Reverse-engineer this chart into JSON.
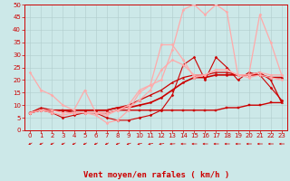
{
  "xlabel": "Vent moyen/en rafales ( km/h )",
  "bg_color": "#cce8e8",
  "grid_color": "#b0cccc",
  "xlim": [
    -0.5,
    23.5
  ],
  "ylim": [
    0,
    50
  ],
  "yticks": [
    0,
    5,
    10,
    15,
    20,
    25,
    30,
    35,
    40,
    45,
    50
  ],
  "xticks": [
    0,
    1,
    2,
    3,
    4,
    5,
    6,
    7,
    8,
    9,
    10,
    11,
    12,
    13,
    14,
    15,
    16,
    17,
    18,
    19,
    20,
    21,
    22,
    23
  ],
  "series": [
    {
      "x": [
        0,
        1,
        2,
        3,
        4,
        5,
        6,
        7,
        8,
        9,
        10,
        11,
        12,
        13,
        14,
        15,
        16,
        17,
        18,
        19,
        20,
        21,
        22,
        23
      ],
      "y": [
        7,
        8,
        8,
        8,
        7,
        7,
        7,
        7,
        8,
        8,
        8,
        8,
        8,
        8,
        8,
        8,
        8,
        8,
        9,
        9,
        10,
        10,
        11,
        11
      ],
      "color": "#cc0000",
      "lw": 1.0,
      "marker": "s",
      "ms": 1.5
    },
    {
      "x": [
        0,
        1,
        2,
        3,
        4,
        5,
        6,
        7,
        8,
        9,
        10,
        11,
        12,
        13,
        14,
        15,
        16,
        17,
        18,
        19,
        20,
        21,
        22,
        23
      ],
      "y": [
        7,
        8,
        7,
        5,
        6,
        7,
        7,
        5,
        4,
        4,
        5,
        6,
        8,
        14,
        26,
        29,
        20,
        29,
        25,
        20,
        23,
        22,
        17,
        12
      ],
      "color": "#cc0000",
      "lw": 0.8,
      "marker": "D",
      "ms": 1.5
    },
    {
      "x": [
        0,
        1,
        2,
        3,
        4,
        5,
        6,
        7,
        8,
        9,
        10,
        11,
        12,
        13,
        14,
        15,
        16,
        17,
        18,
        19,
        20,
        21,
        22,
        23
      ],
      "y": [
        7,
        8,
        8,
        8,
        8,
        8,
        8,
        8,
        9,
        9,
        10,
        11,
        13,
        16,
        19,
        21,
        21,
        22,
        22,
        22,
        22,
        22,
        21,
        21
      ],
      "color": "#cc0000",
      "lw": 1.2,
      "marker": "o",
      "ms": 1.5
    },
    {
      "x": [
        0,
        1,
        2,
        3,
        4,
        5,
        6,
        7,
        8,
        9,
        10,
        11,
        12,
        13,
        14,
        15,
        16,
        17,
        18,
        19,
        20,
        21,
        22,
        23
      ],
      "y": [
        7,
        9,
        8,
        8,
        8,
        8,
        8,
        8,
        9,
        10,
        12,
        14,
        16,
        19,
        21,
        22,
        22,
        23,
        23,
        22,
        22,
        23,
        20,
        11
      ],
      "color": "#cc0000",
      "lw": 0.9,
      "marker": "^",
      "ms": 1.5
    },
    {
      "x": [
        0,
        1,
        2,
        3,
        4,
        5,
        6,
        7,
        8,
        9,
        10,
        11,
        12,
        13,
        14,
        15,
        16,
        17,
        18,
        19,
        20,
        21,
        22,
        23
      ],
      "y": [
        23,
        16,
        14,
        10,
        8,
        16,
        7,
        7,
        8,
        10,
        16,
        18,
        34,
        34,
        28,
        21,
        22,
        24,
        24,
        22,
        22,
        23,
        22,
        22
      ],
      "color": "#ffaaaa",
      "lw": 0.9,
      "marker": "D",
      "ms": 1.5
    },
    {
      "x": [
        0,
        1,
        2,
        3,
        4,
        5,
        6,
        7,
        8,
        9,
        10,
        11,
        12,
        13,
        14,
        15,
        16,
        17,
        18,
        19,
        20,
        21,
        22,
        23
      ],
      "y": [
        7,
        8,
        7,
        6,
        7,
        7,
        6,
        3,
        4,
        8,
        15,
        18,
        20,
        32,
        48,
        50,
        46,
        50,
        47,
        22,
        22,
        46,
        35,
        22
      ],
      "color": "#ffaaaa",
      "lw": 0.9,
      "marker": "D",
      "ms": 1.5
    },
    {
      "x": [
        0,
        1,
        2,
        3,
        4,
        5,
        6,
        7,
        8,
        9,
        10,
        11,
        12,
        13,
        14,
        15,
        16,
        17,
        18,
        19,
        20,
        21,
        22,
        23
      ],
      "y": [
        7,
        8,
        8,
        7,
        7,
        7,
        7,
        6,
        8,
        9,
        12,
        16,
        24,
        28,
        26,
        22,
        22,
        24,
        24,
        22,
        21,
        22,
        21,
        20
      ],
      "color": "#ffaaaa",
      "lw": 0.9,
      "marker": "D",
      "ms": 1.5
    }
  ],
  "arrow_color": "#cc0000",
  "axis_color": "#cc0000",
  "tick_color": "#cc0000",
  "label_color": "#cc0000",
  "xlabel_fontsize": 6.5,
  "tick_fontsize": 5.0,
  "arrow_angles": [
    230,
    230,
    230,
    230,
    230,
    230,
    230,
    230,
    235,
    240,
    245,
    250,
    255,
    265,
    270,
    270,
    270,
    270,
    270,
    270,
    270,
    270,
    270,
    270
  ]
}
